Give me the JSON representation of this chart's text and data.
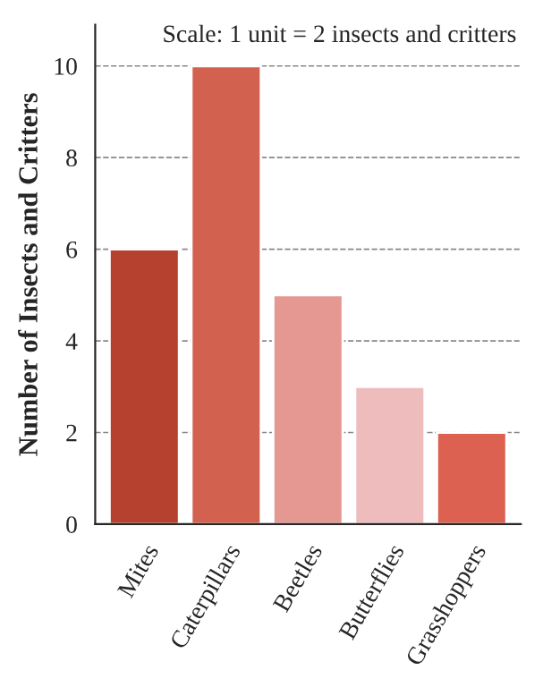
{
  "chart_data": {
    "type": "bar",
    "ylabel": "Number of Insects and Critters",
    "annotations": [
      "Scale: 1 unit = 2 insects and critters"
    ],
    "categories": [
      "Mites",
      "Caterpillars",
      "Beetles",
      "Butterflies",
      "Grasshoppers"
    ],
    "values": [
      6,
      10,
      5,
      3,
      2
    ],
    "colors": [
      "#b5412e",
      "#d2614f",
      "#e59891",
      "#eebcbc",
      "#dd6150"
    ],
    "ylim": [
      0,
      10.9
    ],
    "yticks": [
      0,
      2,
      4,
      6,
      8,
      10
    ],
    "grid": "y",
    "line_style": "dashed"
  }
}
